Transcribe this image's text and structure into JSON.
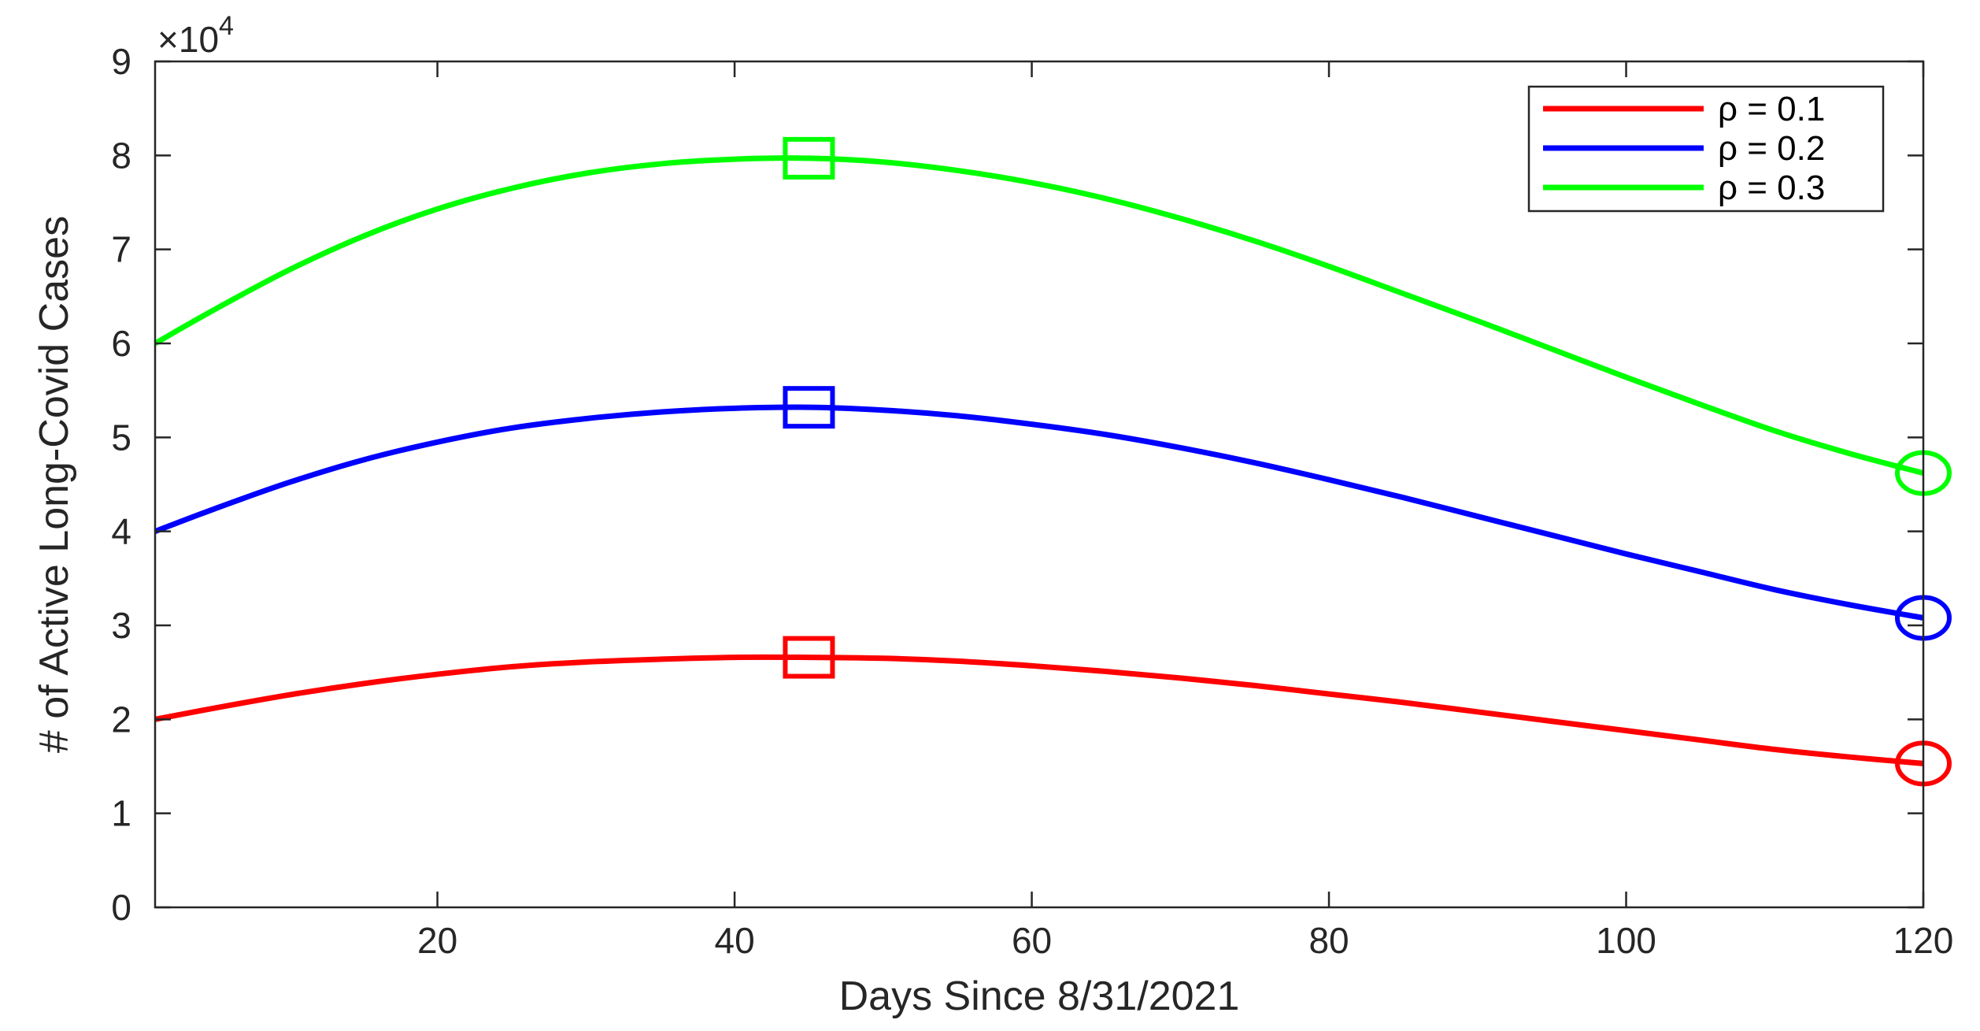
{
  "chart_data": {
    "type": "line",
    "title": "",
    "xlabel": "Days Since 8/31/2021",
    "ylabel": "# of Active Long-Covid Cases",
    "y_multiplier_label": "×10",
    "y_multiplier_exponent": "4",
    "xlim": [
      1,
      120
    ],
    "ylim": [
      0,
      9
    ],
    "x_ticks": [
      20,
      40,
      60,
      80,
      100,
      120
    ],
    "y_ticks": [
      0,
      1,
      2,
      3,
      4,
      5,
      6,
      7,
      8,
      9
    ],
    "grid": false,
    "legend_position": "top-right",
    "x": [
      1,
      5,
      10,
      15,
      20,
      25,
      30,
      35,
      40,
      45,
      50,
      55,
      60,
      65,
      70,
      75,
      80,
      85,
      90,
      95,
      100,
      105,
      110,
      115,
      120
    ],
    "series": [
      {
        "name": "ρ = 0.1",
        "color": "#ff0000",
        "values": [
          2.0,
          2.12,
          2.26,
          2.38,
          2.48,
          2.56,
          2.61,
          2.64,
          2.66,
          2.66,
          2.65,
          2.62,
          2.57,
          2.51,
          2.44,
          2.36,
          2.27,
          2.18,
          2.08,
          1.98,
          1.88,
          1.78,
          1.68,
          1.6,
          1.53
        ]
      },
      {
        "name": "ρ = 0.2",
        "color": "#0000ff",
        "values": [
          4.0,
          4.24,
          4.52,
          4.76,
          4.95,
          5.1,
          5.2,
          5.27,
          5.31,
          5.32,
          5.29,
          5.23,
          5.14,
          5.03,
          4.89,
          4.73,
          4.55,
          4.36,
          4.16,
          3.96,
          3.76,
          3.57,
          3.38,
          3.22,
          3.08
        ]
      },
      {
        "name": "ρ = 0.3",
        "color": "#00ff00",
        "values": [
          6.0,
          6.36,
          6.78,
          7.14,
          7.43,
          7.65,
          7.81,
          7.91,
          7.96,
          7.97,
          7.93,
          7.84,
          7.71,
          7.54,
          7.33,
          7.09,
          6.82,
          6.53,
          6.24,
          5.94,
          5.64,
          5.35,
          5.07,
          4.83,
          4.62
        ]
      }
    ],
    "peak_markers": {
      "shape": "square",
      "x": 45,
      "values": [
        2.66,
        5.32,
        7.97
      ]
    },
    "end_markers": {
      "shape": "circle",
      "x": 120,
      "values": [
        1.53,
        3.08,
        4.62
      ]
    }
  }
}
